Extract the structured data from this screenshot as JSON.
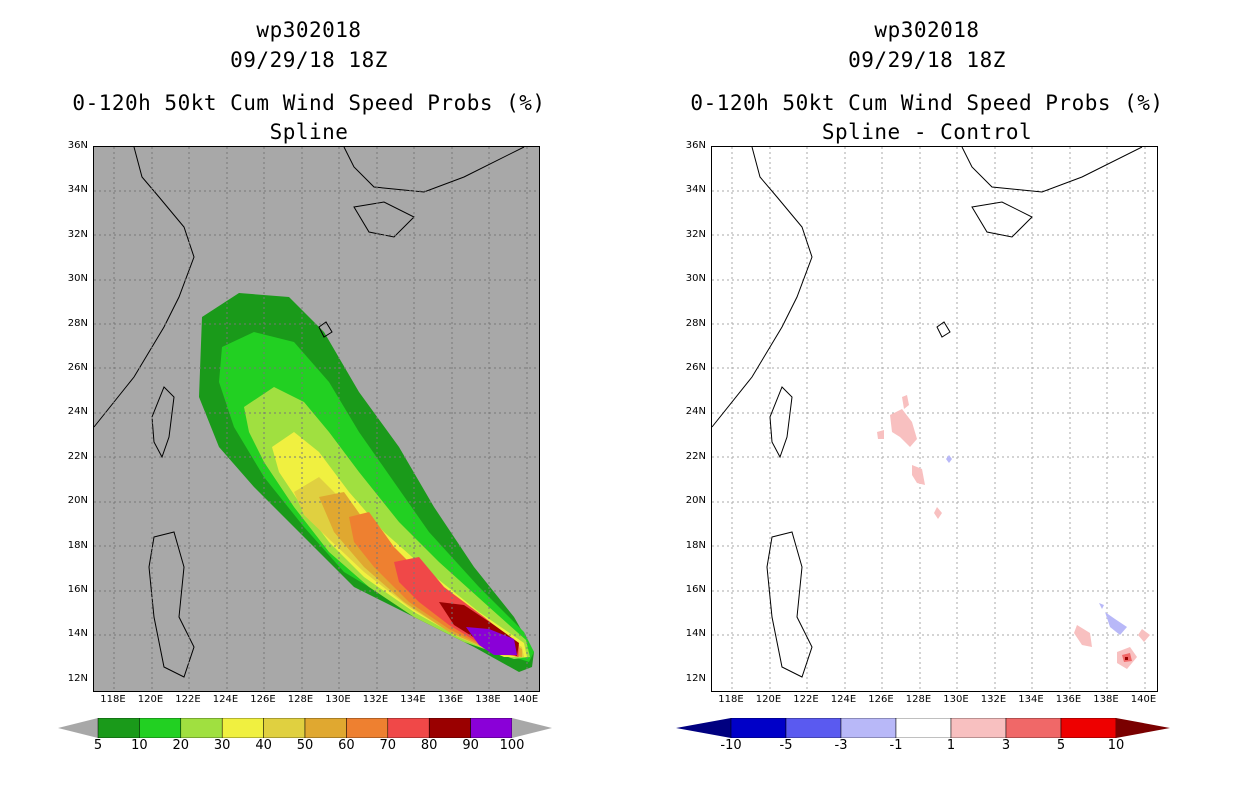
{
  "left_panel": {
    "title_line1": "wp302018",
    "title_line2": "09/29/18 18Z",
    "title_line3": "0-120h 50kt Cum Wind Speed Probs (%)",
    "title_line4": "Spline",
    "lat_labels": [
      "36N",
      "34N",
      "32N",
      "30N",
      "28N",
      "26N",
      "24N",
      "22N",
      "20N",
      "18N",
      "16N",
      "14N",
      "12N"
    ],
    "lon_labels": [
      "118E",
      "120E",
      "122E",
      "124E",
      "126E",
      "128E",
      "130E",
      "132E",
      "134E",
      "136E",
      "138E",
      "140E"
    ],
    "colorbar": {
      "labels": [
        "5",
        "10",
        "20",
        "30",
        "40",
        "50",
        "60",
        "70",
        "80",
        "90",
        "100"
      ],
      "colors": [
        "#1a9a1a",
        "#22d022",
        "#a0e040",
        "#f0f040",
        "#e0d040",
        "#e0a830",
        "#ee8030",
        "#f04848",
        "#9a0000",
        "#8a00d8"
      ]
    }
  },
  "right_panel": {
    "title_line1": "wp302018",
    "title_line2": "09/29/18 18Z",
    "title_line3": "0-120h 50kt Cum Wind Speed Probs (%)",
    "title_line4": "Spline - Control",
    "lat_labels": [
      "36N",
      "34N",
      "32N",
      "30N",
      "28N",
      "26N",
      "24N",
      "22N",
      "20N",
      "18N",
      "16N",
      "14N",
      "12N"
    ],
    "lon_labels": [
      "118E",
      "120E",
      "122E",
      "124E",
      "126E",
      "128E",
      "130E",
      "132E",
      "134E",
      "136E",
      "138E",
      "140E"
    ],
    "colorbar": {
      "labels": [
        "-10",
        "-5",
        "-3",
        "-1",
        "1",
        "3",
        "5",
        "10"
      ],
      "colors": [
        "#0000c8",
        "#5a5af0",
        "#b8b8f8",
        "#ffffff",
        "#f8c0c0",
        "#f06868",
        "#ee0000"
      ]
    }
  }
}
